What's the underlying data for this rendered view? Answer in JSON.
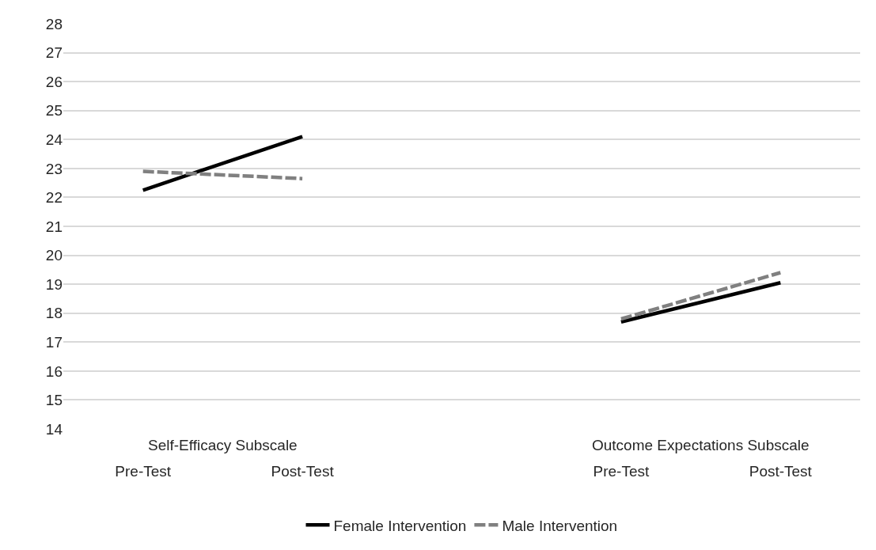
{
  "chart_data": {
    "type": "line",
    "categories": [
      "Pre-Test",
      "Post-Test",
      null,
      "Pre-Test",
      "Post-Test"
    ],
    "series": [
      {
        "name": "Female Intervention",
        "color": "#000000",
        "line_style": "solid",
        "values": [
          22.25,
          24.1,
          null,
          17.7,
          19.05
        ]
      },
      {
        "name": "Male Intervention",
        "color": "#808080",
        "line_style": "dashed",
        "values": [
          22.9,
          22.65,
          null,
          17.8,
          19.4
        ]
      }
    ],
    "annotations": [
      "Self-Efficacy Subscale",
      "Outcome Expectations Subscale"
    ],
    "ylim": [
      14,
      28
    ],
    "yticks": [
      14,
      15,
      16,
      17,
      18,
      19,
      20,
      21,
      22,
      23,
      24,
      25,
      26,
      27,
      28
    ],
    "grid": "y",
    "legend": "bottom",
    "marker": "none"
  }
}
